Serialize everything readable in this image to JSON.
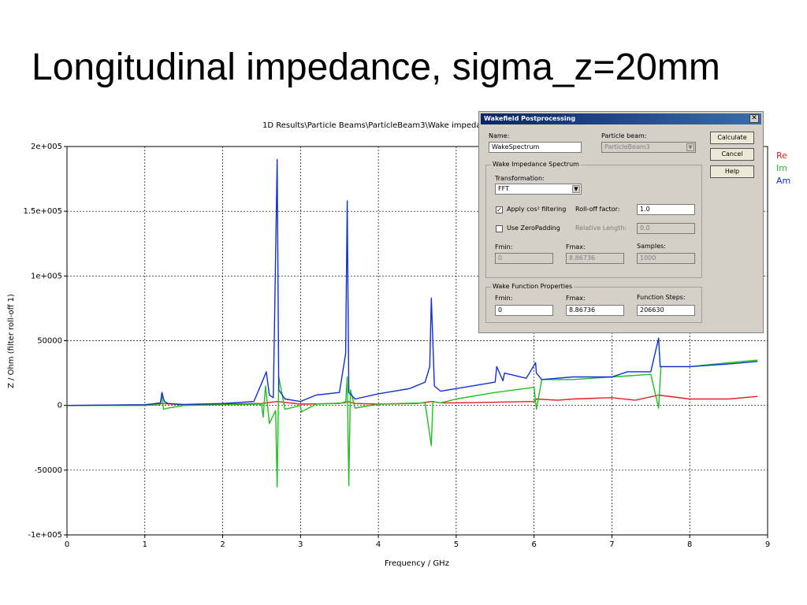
{
  "slide": {
    "title": "Longitudinal impedance, sigma_z=20mm"
  },
  "plot": {
    "header": "1D Results\\Particle Beams\\ParticleBeam3\\Wake impeda",
    "xlabel": "Frequency / GHz",
    "ylabel": "Z / Ohm (filter roll-off 1)"
  },
  "chart_data": {
    "type": "line",
    "xlabel": "Frequency / GHz",
    "ylabel": "Z / Ohm (filter roll-off 1)",
    "xlim": [
      0,
      9
    ],
    "ylim": [
      -100000,
      200000
    ],
    "x_ticks": [
      "0",
      "1",
      "2",
      "3",
      "4",
      "5",
      "6",
      "7",
      "8",
      "9"
    ],
    "y_ticks": [
      "2e+005",
      "1.5e+005",
      "1e+005",
      "50000",
      "0",
      "-50000",
      "-1e+005"
    ],
    "grid": true,
    "legend": "right",
    "series": [
      {
        "name": "Re",
        "color": "#e02020",
        "x": [
          0,
          1,
          1.2,
          1.5,
          2,
          2.5,
          2.7,
          3,
          3.5,
          3.6,
          3.7,
          4,
          4.5,
          4.68,
          4.8,
          5,
          5.5,
          6,
          6.03,
          6.3,
          6.5,
          7,
          7.3,
          7.6,
          8,
          8.5,
          8.87
        ],
        "y": [
          0,
          500,
          1500,
          500,
          1000,
          1500,
          3000,
          1000,
          1500,
          3000,
          1500,
          1000,
          1500,
          3000,
          2000,
          2000,
          2500,
          3000,
          5000,
          4000,
          5000,
          6000,
          4000,
          8000,
          5000,
          5000,
          7000
        ]
      },
      {
        "name": "Im",
        "color": "#20c020",
        "x": [
          0,
          1,
          1.2,
          1.22,
          1.24,
          1.3,
          1.5,
          2,
          2.5,
          2.52,
          2.55,
          2.6,
          2.68,
          2.7,
          2.72,
          2.8,
          3,
          3.01,
          3.2,
          3.58,
          3.6,
          3.62,
          3.64,
          3.7,
          4,
          4.6,
          4.68,
          4.7,
          4.8,
          5,
          5.5,
          6,
          6.03,
          6.1,
          6.5,
          7,
          7.5,
          7.6,
          7.63,
          8,
          8.5,
          8.87
        ],
        "y": [
          0,
          0,
          500,
          8000,
          -3000,
          -2000,
          0,
          500,
          1000,
          -9000,
          15000,
          -14000,
          -4000,
          -63000,
          22000,
          -3000,
          0,
          -5000,
          1000,
          2000,
          22000,
          -62000,
          12000,
          -2000,
          1000,
          2000,
          -31000,
          3000,
          2000,
          5000,
          10000,
          14000,
          -3000,
          20000,
          20000,
          22000,
          24000,
          -2000,
          30000,
          30000,
          33000,
          35000
        ]
      },
      {
        "name": "Am",
        "color": "#1030d0",
        "x": [
          0,
          1,
          1.2,
          1.22,
          1.25,
          1.3,
          1.5,
          2,
          2.4,
          2.52,
          2.56,
          2.6,
          2.65,
          2.7,
          2.72,
          2.8,
          3,
          3.2,
          3.5,
          3.58,
          3.6,
          3.62,
          3.7,
          4,
          4.4,
          4.6,
          4.66,
          4.68,
          4.72,
          4.8,
          5,
          5.5,
          5.52,
          5.6,
          5.62,
          5.9,
          6.02,
          6.03,
          6.1,
          6.5,
          7,
          7.2,
          7.5,
          7.6,
          7.62,
          7.7,
          8,
          8.5,
          8.87
        ],
        "y": [
          0,
          500,
          2000,
          10000,
          3000,
          1500,
          800,
          1500,
          3000,
          20000,
          26000,
          8000,
          6000,
          190000,
          12000,
          5000,
          3000,
          8000,
          10000,
          40000,
          158000,
          10000,
          5000,
          9000,
          13000,
          18000,
          30000,
          83000,
          15000,
          11000,
          13000,
          18000,
          30000,
          19000,
          25000,
          21000,
          33000,
          25000,
          20000,
          22000,
          22000,
          26000,
          26000,
          52000,
          30000,
          30000,
          30000,
          32000,
          34000
        ]
      }
    ]
  },
  "dialog": {
    "title": "Wakefield Postprocessing",
    "close_glyph": "✕",
    "name_label": "Name:",
    "name_value": "WakeSpectrum",
    "particle_beam_label": "Particle beam:",
    "particle_beam_value": "ParticleBeam3",
    "buttons": {
      "calculate": "Calculate",
      "cancel": "Cancel",
      "help": "Help"
    },
    "spectrum_group": "Wake Impedance Spectrum",
    "transformation_label": "Transformation:",
    "transformation_value": "FFT",
    "apply_cos_label": "Apply cos² filtering",
    "apply_cos_checked": "✓",
    "rolloff_label": "Roll-off factor:",
    "rolloff_value": "1.0",
    "zeropad_label": "Use ZeroPadding",
    "rel_length_label": "Relative Length:",
    "rel_length_value": "0.0",
    "fmin_label": "Fmin:",
    "fmin_value": "0",
    "fmax_label": "Fmax:",
    "fmax_value": "8.86736",
    "samples_label": "Samples:",
    "samples_value": "1000",
    "wake_group": "Wake Function Properties",
    "wf_fmin_label": "Fmin:",
    "wf_fmin_value": "0",
    "wf_fmax_label": "Fmax:",
    "wf_fmax_value": "8.86736",
    "wf_steps_label": "Function Steps:",
    "wf_steps_value": "206630",
    "dropdown_glyph": "▼"
  }
}
